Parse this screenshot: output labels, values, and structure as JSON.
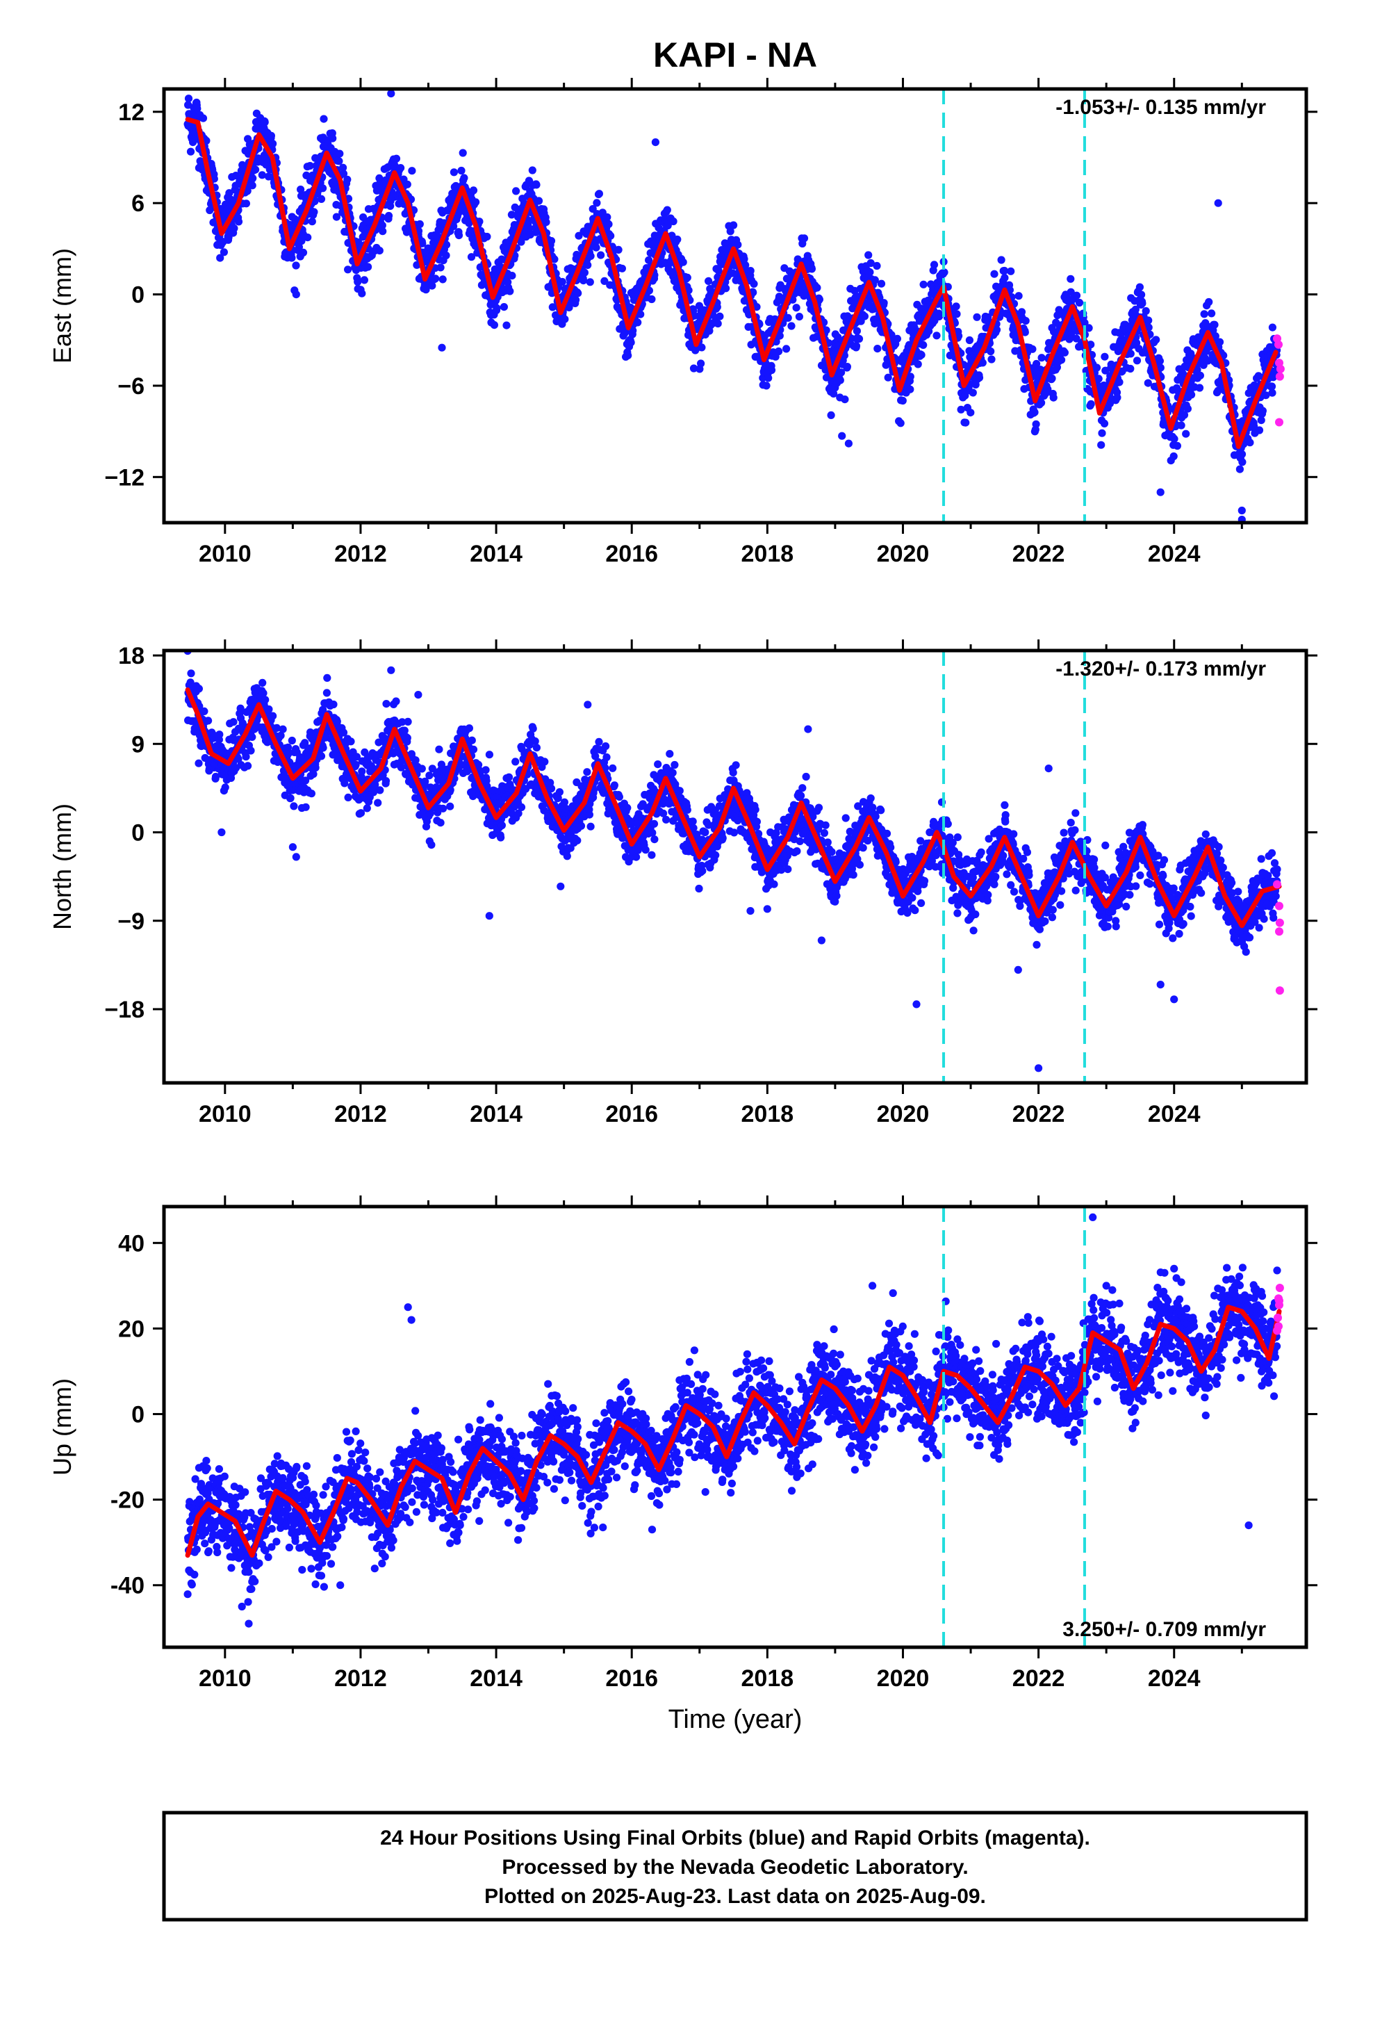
{
  "title": "KAPI - NA",
  "xlabel": "Time (year)",
  "caption": {
    "line1": "24 Hour Positions Using Final Orbits (blue) and Rapid Orbits (magenta).",
    "line2": "Processed by the Nevada Geodetic Laboratory.",
    "line3": "Plotted on 2025-Aug-23. Last data on 2025-Aug-09."
  },
  "colors": {
    "final": "#1414ff",
    "rapid": "#ff22ee",
    "model": "#f40000",
    "event": "#22dddd",
    "frame": "#000000"
  },
  "chart_data": [
    {
      "type": "scatter",
      "ylabel": "East (mm)",
      "xlim": [
        2009.1,
        2025.95
      ],
      "ylim": [
        -15,
        13.5
      ],
      "x_ticks": [
        2010,
        2012,
        2014,
        2016,
        2018,
        2020,
        2022,
        2024
      ],
      "y_ticks": [
        12,
        6,
        0,
        -6,
        -12
      ],
      "y_tick_labels": [
        "12",
        "6",
        "0",
        "−6",
        "−12"
      ],
      "rate": {
        "value": "-1.053",
        "pm": "+/- 0.135 mm/yr",
        "position": "top-right"
      },
      "events": [
        2020.6,
        2022.68
      ],
      "model": {
        "years": [
          2009.45,
          2009.6,
          2009.75,
          2009.95,
          2010.2,
          2010.5,
          2010.7,
          2010.95,
          2011.2,
          2011.5,
          2011.7,
          2011.95,
          2012.2,
          2012.5,
          2012.7,
          2012.95,
          2013.2,
          2013.5,
          2013.7,
          2013.95,
          2014.2,
          2014.5,
          2014.7,
          2014.95,
          2015.2,
          2015.5,
          2015.7,
          2015.95,
          2016.2,
          2016.5,
          2016.7,
          2016.95,
          2017.2,
          2017.5,
          2017.7,
          2017.95,
          2018.2,
          2018.5,
          2018.7,
          2018.95,
          2019.2,
          2019.5,
          2019.7,
          2019.95,
          2020.2,
          2020.5,
          2020.6,
          2020.68,
          2020.9,
          2021.2,
          2021.5,
          2021.7,
          2021.95,
          2022.2,
          2022.5,
          2022.68,
          2022.9,
          2023.2,
          2023.5,
          2023.7,
          2023.95,
          2024.2,
          2024.5,
          2024.7,
          2024.95,
          2025.2,
          2025.5
        ],
        "values": [
          11.5,
          11.3,
          8.0,
          4.0,
          6.0,
          10.5,
          9.0,
          3.0,
          5.5,
          9.3,
          7.5,
          2.0,
          4.5,
          8.0,
          6.0,
          1.0,
          3.5,
          7.0,
          4.5,
          -0.2,
          2.5,
          6.2,
          4.0,
          -1.2,
          1.5,
          5.0,
          2.5,
          -2.2,
          0.5,
          4.0,
          1.5,
          -3.3,
          -0.5,
          3.0,
          0.5,
          -4.3,
          -1.5,
          2.0,
          -0.5,
          -5.3,
          -2.5,
          0.8,
          -1.5,
          -6.3,
          -3.0,
          -0.3,
          0.5,
          -1.2,
          -6.0,
          -3.5,
          0.3,
          -2.0,
          -7.0,
          -4.0,
          -0.8,
          -3.0,
          -7.8,
          -4.5,
          -1.5,
          -4.5,
          -8.8,
          -5.5,
          -2.5,
          -4.5,
          -10.0,
          -7.0,
          -3.8
        ]
      },
      "series": [
        {
          "name": "final",
          "scatter": 1.0,
          "outliers": [
            [
              2012.45,
              13.2
            ],
            [
              2016.35,
              10.0
            ],
            [
              2024.65,
              6.0
            ],
            [
              2022.2,
              -2.2
            ],
            [
              2023.8,
              -13.0
            ],
            [
              2025.0,
              -14.2
            ],
            [
              2025.0,
              -14.8
            ],
            [
              2019.1,
              -9.3
            ],
            [
              2019.2,
              -9.8
            ],
            [
              2013.2,
              -3.5
            ],
            [
              2011.05,
              0.0
            ]
          ]
        },
        {
          "name": "rapid",
          "points": [
            [
              2025.52,
              -2.9
            ],
            [
              2025.54,
              -3.3
            ],
            [
              2025.55,
              -4.5
            ],
            [
              2025.57,
              -4.9
            ],
            [
              2025.56,
              -5.4
            ],
            [
              2025.55,
              -8.4
            ]
          ]
        }
      ]
    },
    {
      "type": "scatter",
      "ylabel": "North (mm)",
      "xlim": [
        2009.1,
        2025.95
      ],
      "ylim": [
        -25.5,
        18.5
      ],
      "x_ticks": [
        2010,
        2012,
        2014,
        2016,
        2018,
        2020,
        2022,
        2024
      ],
      "y_ticks": [
        18,
        9,
        0,
        -9,
        -18
      ],
      "y_tick_labels": [
        "18",
        "9",
        "0",
        "−9",
        "−18"
      ],
      "rate": {
        "value": "-1.320",
        "pm": "+/- 0.173 mm/yr",
        "position": "top-right"
      },
      "events": [
        2020.6,
        2022.68
      ],
      "model": {
        "years": [
          2009.45,
          2009.6,
          2009.8,
          2010.05,
          2010.3,
          2010.5,
          2010.75,
          2011.0,
          2011.3,
          2011.5,
          2011.75,
          2012.0,
          2012.3,
          2012.5,
          2012.75,
          2013.0,
          2013.3,
          2013.5,
          2013.75,
          2014.0,
          2014.3,
          2014.5,
          2014.75,
          2015.0,
          2015.3,
          2015.5,
          2015.75,
          2016.0,
          2016.3,
          2016.5,
          2016.75,
          2017.0,
          2017.3,
          2017.5,
          2017.75,
          2018.0,
          2018.3,
          2018.5,
          2018.75,
          2019.0,
          2019.3,
          2019.5,
          2019.75,
          2020.0,
          2020.3,
          2020.5,
          2020.6,
          2020.75,
          2021.0,
          2021.3,
          2021.5,
          2021.75,
          2022.0,
          2022.3,
          2022.5,
          2022.68,
          2022.75,
          2023.0,
          2023.3,
          2023.5,
          2023.75,
          2024.0,
          2024.3,
          2024.5,
          2024.75,
          2025.0,
          2025.3,
          2025.55
        ],
        "values": [
          14.5,
          12.0,
          8.0,
          7.0,
          10.0,
          13.0,
          9.0,
          5.5,
          7.5,
          12.0,
          8.0,
          4.2,
          6.5,
          10.5,
          6.5,
          2.5,
          5.0,
          9.5,
          5.0,
          1.5,
          4.0,
          8.0,
          3.5,
          0.2,
          3.0,
          7.0,
          3.0,
          -1.2,
          2.0,
          5.5,
          1.5,
          -2.5,
          0.5,
          4.5,
          0.5,
          -3.8,
          -0.5,
          3.0,
          -1.0,
          -5.0,
          -1.5,
          1.5,
          -2.0,
          -6.5,
          -3.0,
          0.0,
          -1.5,
          -4.5,
          -6.5,
          -3.5,
          -0.5,
          -4.5,
          -8.5,
          -4.5,
          -1.0,
          -3.5,
          -4.5,
          -7.5,
          -4.0,
          -0.5,
          -5.0,
          -8.5,
          -4.5,
          -1.5,
          -6.5,
          -9.5,
          -6.0,
          -5.5
        ]
      },
      "series": [
        {
          "name": "final",
          "scatter": 1.4,
          "outliers": [
            [
              2012.45,
              16.5
            ],
            [
              2012.85,
              14.0
            ],
            [
              2015.35,
              13.0
            ],
            [
              2018.6,
              10.5
            ],
            [
              2009.95,
              0.0
            ],
            [
              2011.0,
              -1.5
            ],
            [
              2011.05,
              -2.5
            ],
            [
              2013.9,
              -8.5
            ],
            [
              2014.95,
              -5.5
            ],
            [
              2020.2,
              -17.5
            ],
            [
              2022.0,
              -24.0
            ],
            [
              2022.15,
              6.5
            ],
            [
              2024.0,
              -17.0
            ],
            [
              2023.8,
              -15.5
            ],
            [
              2018.8,
              -11.0
            ],
            [
              2021.7,
              -14.0
            ],
            [
              2017.75,
              -8.0
            ]
          ]
        },
        {
          "name": "rapid",
          "points": [
            [
              2025.52,
              -5.3
            ],
            [
              2025.55,
              -7.5
            ],
            [
              2025.56,
              -9.2
            ],
            [
              2025.55,
              -10.1
            ],
            [
              2025.56,
              -16.1
            ]
          ]
        }
      ]
    },
    {
      "type": "scatter",
      "ylabel": "Up (mm)",
      "xlim": [
        2009.1,
        2025.95
      ],
      "ylim": [
        -54.5,
        48.5
      ],
      "x_ticks": [
        2010,
        2012,
        2014,
        2016,
        2018,
        2020,
        2022,
        2024
      ],
      "y_ticks": [
        40,
        20,
        0,
        -20,
        -40
      ],
      "y_tick_labels": [
        "40",
        "20",
        "0",
        "-20",
        "-40"
      ],
      "rate": {
        "value": "3.250",
        "pm": "+/- 0.709 mm/yr",
        "position": "bottom-right"
      },
      "events": [
        2020.6,
        2022.68
      ],
      "model": {
        "years": [
          2009.45,
          2009.6,
          2009.75,
          2009.95,
          2010.15,
          2010.4,
          2010.55,
          2010.75,
          2010.95,
          2011.15,
          2011.4,
          2011.6,
          2011.8,
          2011.95,
          2012.15,
          2012.4,
          2012.6,
          2012.8,
          2013.0,
          2013.2,
          2013.4,
          2013.6,
          2013.8,
          2014.0,
          2014.2,
          2014.4,
          2014.6,
          2014.8,
          2015.0,
          2015.2,
          2015.4,
          2015.6,
          2015.8,
          2016.0,
          2016.2,
          2016.4,
          2016.6,
          2016.8,
          2017.0,
          2017.2,
          2017.4,
          2017.6,
          2017.8,
          2018.0,
          2018.2,
          2018.4,
          2018.6,
          2018.8,
          2019.0,
          2019.2,
          2019.4,
          2019.6,
          2019.8,
          2020.0,
          2020.2,
          2020.4,
          2020.6,
          2020.8,
          2021.0,
          2021.2,
          2021.4,
          2021.6,
          2021.8,
          2022.0,
          2022.2,
          2022.4,
          2022.6,
          2022.8,
          2023.0,
          2023.2,
          2023.4,
          2023.6,
          2023.8,
          2024.0,
          2024.2,
          2024.4,
          2024.6,
          2024.8,
          2025.0,
          2025.2,
          2025.4,
          2025.55
        ],
        "values": [
          -33,
          -24,
          -21,
          -23,
          -25,
          -33,
          -26,
          -18,
          -20,
          -23,
          -30,
          -23,
          -15,
          -16,
          -20,
          -26,
          -17,
          -11,
          -13,
          -15,
          -23,
          -14,
          -8,
          -11,
          -14,
          -20,
          -11,
          -5,
          -7,
          -10,
          -16,
          -9,
          -2,
          -4,
          -7,
          -13,
          -6,
          2,
          0,
          -3,
          -10,
          -2,
          5,
          2,
          -2,
          -7,
          1,
          8,
          6,
          2,
          -4,
          2,
          11,
          9,
          4,
          -2,
          10,
          9,
          6,
          2,
          -2,
          4,
          11,
          10,
          7,
          2,
          6,
          19,
          17,
          15,
          6,
          12,
          21,
          20,
          17,
          10,
          15,
          25,
          24,
          20,
          13,
          24
        ]
      },
      "series": [
        {
          "name": "final",
          "scatter": 5.0,
          "outliers": [
            [
              2012.7,
              25.0
            ],
            [
              2012.75,
              22.0
            ],
            [
              2019.55,
              30.0
            ],
            [
              2022.8,
              46.0
            ],
            [
              2025.1,
              -26.0
            ],
            [
              2013.75,
              -25.0
            ],
            [
              2010.25,
              -45.0
            ],
            [
              2010.35,
              -49.0
            ],
            [
              2011.7,
              -40.0
            ],
            [
              2016.3,
              -27.0
            ],
            [
              2014.5,
              -21.0
            ],
            [
              2023.0,
              30.0
            ],
            [
              2024.0,
              34.0
            ]
          ]
        },
        {
          "name": "rapid",
          "points": [
            [
              2025.52,
              19.5
            ],
            [
              2025.53,
              22.5
            ],
            [
              2025.55,
              25.5
            ],
            [
              2025.54,
              27.0
            ],
            [
              2025.56,
              29.5
            ],
            [
              2025.55,
              26.5
            ],
            [
              2025.54,
              20.5
            ]
          ]
        }
      ]
    }
  ]
}
